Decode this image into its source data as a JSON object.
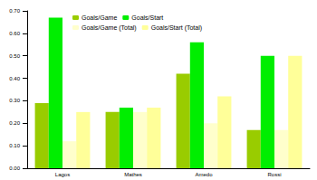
{
  "chart_data": {
    "type": "bar",
    "categories": [
      "Lagos",
      "Mathes",
      "Amedo",
      "Rossi"
    ],
    "series": [
      {
        "name": "Goals/Game",
        "color": "#99cc00",
        "values": [
          0.29,
          0.25,
          0.42,
          0.17
        ]
      },
      {
        "name": "Goals/Start",
        "color": "#00ee00",
        "values": [
          0.67,
          0.27,
          0.56,
          0.5
        ]
      },
      {
        "name": "Goals/Game (Total)",
        "color": "#ffffcc",
        "values": [
          0.12,
          0.25,
          0.2,
          0.17
        ]
      },
      {
        "name": "Goals/Start (Total)",
        "color": "#ffff99",
        "values": [
          0.25,
          0.27,
          0.32,
          0.5
        ]
      }
    ],
    "ylim": [
      0,
      0.7
    ],
    "yticks": [
      {
        "value": 0,
        "label": "0.00"
      },
      {
        "value": 0.1,
        "label": "0.10"
      },
      {
        "value": 0.2,
        "label": "0.20"
      },
      {
        "value": 0.3,
        "label": "0.30"
      },
      {
        "value": 0.4,
        "label": "0.40"
      },
      {
        "value": 0.5,
        "label": "0.50"
      },
      {
        "value": 0.6,
        "label": "0.60"
      },
      {
        "value": 0.7,
        "label": "0.70"
      }
    ],
    "grid": false,
    "legend": "top-left"
  }
}
